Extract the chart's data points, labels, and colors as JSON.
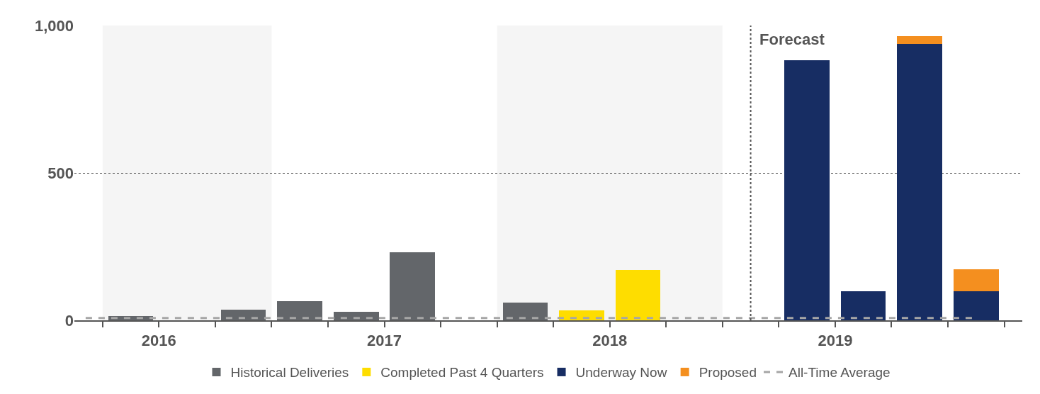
{
  "chart_data": {
    "type": "bar",
    "stacked": true,
    "x": [
      2016.375,
      2016.625,
      2016.875,
      2017.125,
      2017.375,
      2017.625,
      2017.875,
      2018.125,
      2018.375,
      2018.625,
      2018.875,
      2019.125,
      2019.375,
      2019.625,
      2019.875,
      2020.125
    ],
    "series": [
      {
        "name": "Historical Deliveries",
        "color": "#63666a",
        "values": [
          15,
          null,
          36,
          65,
          28,
          230,
          null,
          61,
          null,
          null,
          null,
          null,
          null,
          null,
          null,
          null
        ]
      },
      {
        "name": "Completed Past 4 Quarters",
        "color": "#fedd00",
        "values": [
          null,
          null,
          null,
          null,
          null,
          null,
          null,
          null,
          34,
          171,
          null,
          null,
          null,
          null,
          null,
          null
        ]
      },
      {
        "name": "Underway Now",
        "color": "#172d63",
        "values": [
          null,
          null,
          null,
          null,
          null,
          null,
          null,
          null,
          null,
          null,
          null,
          null,
          882,
          98,
          937,
          98
        ]
      },
      {
        "name": "Proposed",
        "color": "#f48f1f",
        "values": [
          null,
          null,
          null,
          null,
          null,
          null,
          null,
          null,
          null,
          null,
          null,
          null,
          null,
          null,
          27,
          75
        ]
      }
    ],
    "xlim": [
      2016.125,
      2020.33
    ],
    "xticks": [
      {
        "value": 2016.25,
        "label": null
      },
      {
        "value": 2016.5,
        "label": "2016"
      },
      {
        "value": 2016.75,
        "label": null
      },
      {
        "value": 2017,
        "label": null
      },
      {
        "value": 2017.25,
        "label": null
      },
      {
        "value": 2017.5,
        "label": "2017"
      },
      {
        "value": 2017.75,
        "label": null
      },
      {
        "value": 2018,
        "label": null
      },
      {
        "value": 2018.25,
        "label": null
      },
      {
        "value": 2018.5,
        "label": "2018"
      },
      {
        "value": 2018.75,
        "label": null
      },
      {
        "value": 2019,
        "label": null
      },
      {
        "value": 2019.25,
        "label": null
      },
      {
        "value": 2019.5,
        "label": "2019"
      },
      {
        "value": 2019.75,
        "label": null
      },
      {
        "value": 2020,
        "label": null
      },
      {
        "value": 2020.25,
        "label": null
      }
    ],
    "ylim": [
      0,
      1000
    ],
    "yticks": [
      0,
      500,
      {
        "value": 1000,
        "label": "1,000"
      }
    ],
    "grid": "y",
    "legend": "bottom",
    "ref_lines": [
      {
        "axis": "y",
        "value": 8,
        "label": "All-Time Average",
        "color": "#a6a6a6",
        "line_style": "dashed"
      },
      {
        "axis": "x",
        "value": 2019.125,
        "label": "Forecast",
        "color": "#555555",
        "line_style": "dotted"
      }
    ],
    "bands": [
      {
        "axis": "x",
        "from": 2016.25,
        "to": 2017,
        "color": "#f5f5f5"
      },
      {
        "axis": "x",
        "from": 2018,
        "to": 2019,
        "color": "#f5f5f5"
      }
    ]
  }
}
